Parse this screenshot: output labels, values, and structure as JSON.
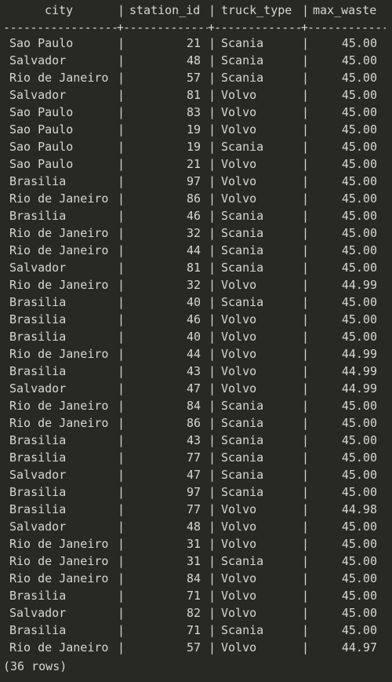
{
  "result": {
    "columns": [
      "city",
      "station_id",
      "truck_type",
      "max_waste"
    ],
    "rows": [
      [
        "Sao Paulo",
        "21",
        "Scania",
        "45.00"
      ],
      [
        "Salvador",
        "48",
        "Scania",
        "45.00"
      ],
      [
        "Rio de Janeiro",
        "57",
        "Scania",
        "45.00"
      ],
      [
        "Salvador",
        "81",
        "Volvo",
        "45.00"
      ],
      [
        "Sao Paulo",
        "83",
        "Volvo",
        "45.00"
      ],
      [
        "Sao Paulo",
        "19",
        "Volvo",
        "45.00"
      ],
      [
        "Sao Paulo",
        "19",
        "Scania",
        "45.00"
      ],
      [
        "Sao Paulo",
        "21",
        "Volvo",
        "45.00"
      ],
      [
        "Brasilia",
        "97",
        "Volvo",
        "45.00"
      ],
      [
        "Rio de Janeiro",
        "86",
        "Volvo",
        "45.00"
      ],
      [
        "Brasilia",
        "46",
        "Scania",
        "45.00"
      ],
      [
        "Rio de Janeiro",
        "32",
        "Scania",
        "45.00"
      ],
      [
        "Rio de Janeiro",
        "44",
        "Scania",
        "45.00"
      ],
      [
        "Salvador",
        "81",
        "Scania",
        "45.00"
      ],
      [
        "Rio de Janeiro",
        "32",
        "Volvo",
        "44.99"
      ],
      [
        "Brasilia",
        "40",
        "Scania",
        "45.00"
      ],
      [
        "Brasilia",
        "46",
        "Volvo",
        "45.00"
      ],
      [
        "Brasilia",
        "40",
        "Volvo",
        "45.00"
      ],
      [
        "Rio de Janeiro",
        "44",
        "Volvo",
        "44.99"
      ],
      [
        "Brasilia",
        "43",
        "Volvo",
        "44.99"
      ],
      [
        "Salvador",
        "47",
        "Volvo",
        "44.99"
      ],
      [
        "Rio de Janeiro",
        "84",
        "Scania",
        "45.00"
      ],
      [
        "Rio de Janeiro",
        "86",
        "Scania",
        "45.00"
      ],
      [
        "Brasilia",
        "43",
        "Scania",
        "45.00"
      ],
      [
        "Brasilia",
        "77",
        "Scania",
        "45.00"
      ],
      [
        "Salvador",
        "47",
        "Scania",
        "45.00"
      ],
      [
        "Brasilia",
        "97",
        "Scania",
        "45.00"
      ],
      [
        "Brasilia",
        "77",
        "Volvo",
        "44.98"
      ],
      [
        "Salvador",
        "48",
        "Volvo",
        "45.00"
      ],
      [
        "Rio de Janeiro",
        "31",
        "Volvo",
        "45.00"
      ],
      [
        "Rio de Janeiro",
        "31",
        "Scania",
        "45.00"
      ],
      [
        "Rio de Janeiro",
        "84",
        "Volvo",
        "45.00"
      ],
      [
        "Brasilia",
        "71",
        "Volvo",
        "45.00"
      ],
      [
        "Salvador",
        "82",
        "Volvo",
        "45.00"
      ],
      [
        "Brasilia",
        "71",
        "Scania",
        "45.00"
      ],
      [
        "Rio de Janeiro",
        "57",
        "Volvo",
        "44.97"
      ]
    ],
    "row_count_label": "(36 rows)"
  },
  "colors": {
    "background": "#282923",
    "text": "#d8d8d2"
  }
}
